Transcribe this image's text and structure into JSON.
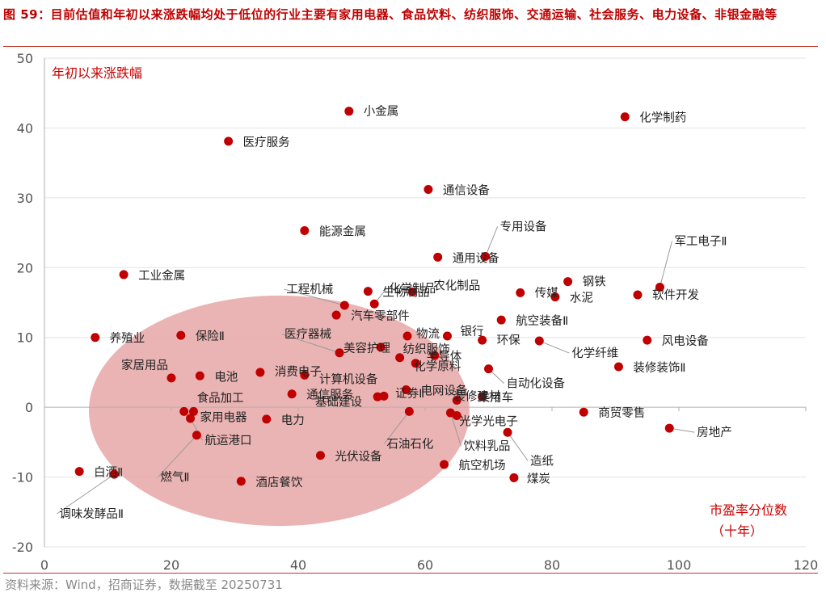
{
  "title": "图 59：目前估值和年初以来涨跌幅均处于低位的行业主要有家用电器、食品饮料、纺织服饰、交通运输、社会服务、电力设备、非银金融等",
  "source": "资料来源：Wind，招商证券，数据截至 20250731",
  "colors": {
    "accent": "#c00000",
    "point": "#c00000",
    "ellipse": "#e8a7a7",
    "leader": "#9a9a9a"
  },
  "chart_data": {
    "type": "scatter",
    "title": "",
    "ylabel": "年初以来涨跌幅",
    "xlabel_lines": [
      "市盈率分位数",
      "（十年）"
    ],
    "xlim": [
      0,
      120
    ],
    "ylim": [
      -20,
      50
    ],
    "xticks": [
      0,
      20,
      40,
      60,
      80,
      100,
      120
    ],
    "yticks": [
      -20,
      -10,
      0,
      10,
      20,
      30,
      40,
      50
    ],
    "grid": "horizontal",
    "highlight_region": {
      "shape": "ellipse",
      "cx": 37,
      "cy": -0.5,
      "rx": 30,
      "ry": 16.5
    },
    "points": [
      {
        "name": "小金属",
        "x": 48,
        "y": 42.4
      },
      {
        "name": "化学制药",
        "x": 91.5,
        "y": 41.6
      },
      {
        "name": "医疗服务",
        "x": 29,
        "y": 38.1
      },
      {
        "name": "通信设备",
        "x": 60.5,
        "y": 31.2
      },
      {
        "name": "能源金属",
        "x": 41,
        "y": 25.3
      },
      {
        "name": "专用设备",
        "x": 69.5,
        "y": 21.6
      },
      {
        "name": "通用设备",
        "x": 62,
        "y": 21.5
      },
      {
        "name": "军工电子Ⅱ",
        "x": 97,
        "y": 17.2
      },
      {
        "name": "工业金属",
        "x": 12.5,
        "y": 19
      },
      {
        "name": "钢铁",
        "x": 82.5,
        "y": 18
      },
      {
        "name": "工程机械",
        "x": 47.3,
        "y": 14.6
      },
      {
        "name": "生物制品",
        "x": 51,
        "y": 16.6
      },
      {
        "name": "农化制品",
        "x": 58,
        "y": 16.5
      },
      {
        "name": "传媒",
        "x": 75,
        "y": 16.4
      },
      {
        "name": "水泥",
        "x": 80.5,
        "y": 15.8
      },
      {
        "name": "软件开发",
        "x": 93.5,
        "y": 16.1
      },
      {
        "name": "汽车零部件",
        "x": 46,
        "y": 13.2
      },
      {
        "name": "化学制品",
        "x": 52,
        "y": 14.8
      },
      {
        "name": "航空装备Ⅱ",
        "x": 72,
        "y": 12.5
      },
      {
        "name": "养殖业",
        "x": 8,
        "y": 10
      },
      {
        "name": "保险Ⅱ",
        "x": 21.5,
        "y": 10.3
      },
      {
        "name": "医疗器械",
        "x": 46.5,
        "y": 7.8
      },
      {
        "name": "美容护理",
        "x": 53,
        "y": 8.6
      },
      {
        "name": "银行",
        "x": 63.5,
        "y": 10.2
      },
      {
        "name": "环保",
        "x": 69,
        "y": 9.6
      },
      {
        "name": "化学纤维",
        "x": 78,
        "y": 9.5
      },
      {
        "name": "风电设备",
        "x": 95,
        "y": 9.6
      },
      {
        "name": "物流",
        "x": 57.2,
        "y": 10.2
      },
      {
        "name": "半导体",
        "x": 61.5,
        "y": 7.4
      },
      {
        "name": "家居用品",
        "x": 20,
        "y": 4.2
      },
      {
        "name": "电池",
        "x": 24.5,
        "y": 4.5
      },
      {
        "name": "消费电子",
        "x": 34,
        "y": 5
      },
      {
        "name": "计算机设备",
        "x": 41,
        "y": 4.6
      },
      {
        "name": "纺织服饰",
        "x": 56,
        "y": 7.1
      },
      {
        "name": "化学原料",
        "x": 58.5,
        "y": 6.3
      },
      {
        "name": "自动化设备",
        "x": 70,
        "y": 5.5
      },
      {
        "name": "装修装饰Ⅱ",
        "x": 90.5,
        "y": 5.8
      },
      {
        "name": "食品加工",
        "x": 22,
        "y": -0.6
      },
      {
        "name": "通信服务",
        "x": 39,
        "y": 1.9
      },
      {
        "name": "证券Ⅱ",
        "x": 52.5,
        "y": 1.5
      },
      {
        "name": "电网设备",
        "x": 57,
        "y": 2.5
      },
      {
        "name": "乘用车",
        "x": 69,
        "y": 1.5
      },
      {
        "name": "装修建材",
        "x": 65,
        "y": 1
      },
      {
        "name": "家用电器",
        "x": 23.5,
        "y": -0.6
      },
      {
        "name": "电力",
        "x": 35,
        "y": -1.7
      },
      {
        "name": "基础建设",
        "x": 53.5,
        "y": 1.6
      },
      {
        "name": "光学光电子",
        "x": 65,
        "y": -1.2
      },
      {
        "name": "商贸零售",
        "x": 85,
        "y": -0.7
      },
      {
        "name": "房地产",
        "x": 98.5,
        "y": -3
      },
      {
        "name": "航运港口",
        "x": 23,
        "y": -1.6
      },
      {
        "name": "燃气Ⅱ",
        "x": 24,
        "y": -4
      },
      {
        "name": "石油石化",
        "x": 57.5,
        "y": -0.6
      },
      {
        "name": "饮料乳品",
        "x": 64,
        "y": -0.8
      },
      {
        "name": "造纸",
        "x": 73,
        "y": -3.6
      },
      {
        "name": "光伏设备",
        "x": 43.5,
        "y": -6.9
      },
      {
        "name": "航空机场",
        "x": 63,
        "y": -8.2
      },
      {
        "name": "白酒Ⅱ",
        "x": 5.5,
        "y": -9.2
      },
      {
        "name": "调味发酵品Ⅱ",
        "x": 11,
        "y": -9.6
      },
      {
        "name": "酒店餐饮",
        "x": 31,
        "y": -10.6
      },
      {
        "name": "煤炭",
        "x": 74,
        "y": -10.1
      }
    ]
  }
}
